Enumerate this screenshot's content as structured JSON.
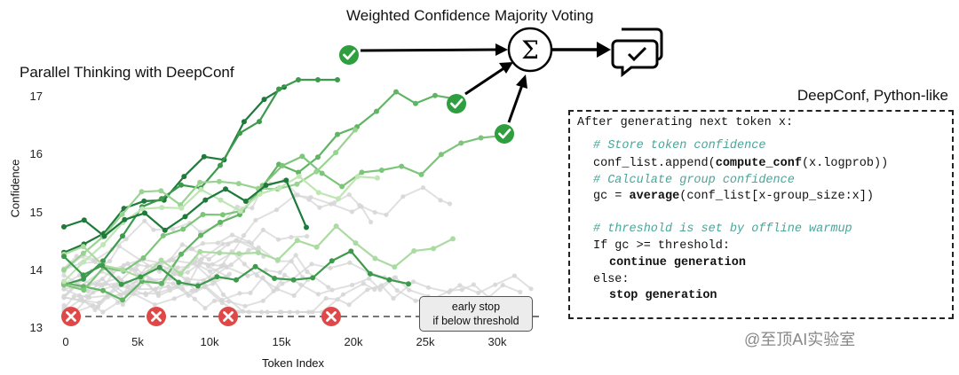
{
  "titles": {
    "main": "Weighted Confidence Majority Voting",
    "left": "Parallel Thinking with DeepConf",
    "code": "DeepConf, Python-like"
  },
  "axes": {
    "ylabel": "Confidence",
    "xlabel": "Token Index",
    "yticks": [
      "17",
      "16",
      "15",
      "14",
      "13"
    ],
    "xticks": [
      "0",
      "5k",
      "10k",
      "15k",
      "20k",
      "25k",
      "30k"
    ]
  },
  "early_stop": {
    "line1": "early stop",
    "line2": "if below threshold"
  },
  "code": {
    "header": "After generating next token x:",
    "comment1": "# Store token confidence",
    "line1_pre": "conf_list.append(",
    "line1_fn": "compute_conf",
    "line1_post": "(x.logprob))",
    "comment2": "# Calculate group confidence",
    "line2_pre": "gc = ",
    "line2_fn": "average",
    "line2_post": "(conf_list[x-group_size:x])",
    "comment3": "# threshold is set by offline warmup",
    "if_line": "If gc >= threshold:",
    "continue": "continue generation",
    "else_line": "else:",
    "stop": "stop generation"
  },
  "icons": {
    "sum_symbol": "Σ",
    "check": "check-circle-icon",
    "cross": "x-circle-icon",
    "vote": "chat-check-icon"
  },
  "colors": {
    "accept": "#2e9e3e",
    "reject": "#e04848",
    "trace_dark": "#1e7a3a",
    "trace_light": "#bfe6b4",
    "trace_grey": "#d6d6d6"
  },
  "watermark": "@至顶AI实验室"
}
